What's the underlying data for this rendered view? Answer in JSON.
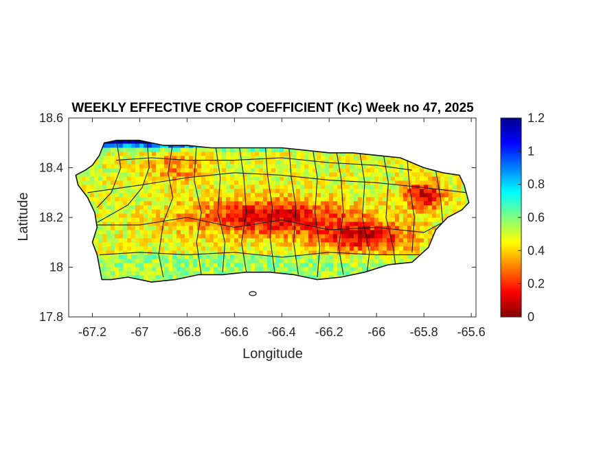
{
  "title": "WEEKLY EFFECTIVE CROP COEFFICIENT (Kc) Week no 47, 2025",
  "x_axis": {
    "label": "Longitude",
    "range": [
      -67.3,
      -65.58
    ],
    "ticks": [
      {
        "value": -67.2,
        "label": "-67.2"
      },
      {
        "value": -67.0,
        "label": "-67"
      },
      {
        "value": -66.8,
        "label": "-66.8"
      },
      {
        "value": -66.6,
        "label": "-66.6"
      },
      {
        "value": -66.4,
        "label": "-66.4"
      },
      {
        "value": -66.2,
        "label": "-66.2"
      },
      {
        "value": -66.0,
        "label": "-66"
      },
      {
        "value": -65.8,
        "label": "-65.8"
      },
      {
        "value": -65.6,
        "label": "-65.6"
      }
    ]
  },
  "y_axis": {
    "label": "Latitude",
    "range": [
      17.8,
      18.6
    ],
    "ticks": [
      {
        "value": 17.8,
        "label": "17.8"
      },
      {
        "value": 18.0,
        "label": "18"
      },
      {
        "value": 18.2,
        "label": "18.2"
      },
      {
        "value": 18.4,
        "label": "18.4"
      },
      {
        "value": 18.6,
        "label": "18.6"
      }
    ]
  },
  "colorbar": {
    "colormap": "jet",
    "range": [
      0,
      1.2
    ],
    "ticks": [
      {
        "value": 0,
        "label": "0"
      },
      {
        "value": 0.2,
        "label": "0.2"
      },
      {
        "value": 0.4,
        "label": "0.4"
      },
      {
        "value": 0.6,
        "label": "0.6"
      },
      {
        "value": 0.8,
        "label": "0.8"
      },
      {
        "value": 1.0,
        "label": "1"
      },
      {
        "value": 1.2,
        "label": "1.2"
      }
    ]
  },
  "map": {
    "region_outline_lonlat": [
      [
        -67.27,
        18.37
      ],
      [
        -67.23,
        18.39
      ],
      [
        -67.2,
        18.41
      ],
      [
        -67.17,
        18.45
      ],
      [
        -67.15,
        18.5
      ],
      [
        -67.1,
        18.51
      ],
      [
        -67.0,
        18.51
      ],
      [
        -66.9,
        18.49
      ],
      [
        -66.8,
        18.49
      ],
      [
        -66.7,
        18.48
      ],
      [
        -66.6,
        18.48
      ],
      [
        -66.5,
        18.48
      ],
      [
        -66.4,
        18.48
      ],
      [
        -66.3,
        18.47
      ],
      [
        -66.2,
        18.46
      ],
      [
        -66.1,
        18.46
      ],
      [
        -66.0,
        18.45
      ],
      [
        -65.9,
        18.44
      ],
      [
        -65.8,
        18.4
      ],
      [
        -65.72,
        18.38
      ],
      [
        -65.65,
        18.37
      ],
      [
        -65.63,
        18.33
      ],
      [
        -65.61,
        18.26
      ],
      [
        -65.64,
        18.23
      ],
      [
        -65.7,
        18.2
      ],
      [
        -65.75,
        18.15
      ],
      [
        -65.78,
        18.08
      ],
      [
        -65.85,
        18.02
      ],
      [
        -65.95,
        18.01
      ],
      [
        -66.05,
        17.98
      ],
      [
        -66.15,
        17.96
      ],
      [
        -66.25,
        17.95
      ],
      [
        -66.35,
        17.97
      ],
      [
        -66.45,
        17.98
      ],
      [
        -66.55,
        17.98
      ],
      [
        -66.65,
        17.97
      ],
      [
        -66.75,
        17.97
      ],
      [
        -66.85,
        17.95
      ],
      [
        -66.95,
        17.94
      ],
      [
        -67.05,
        17.96
      ],
      [
        -67.12,
        17.95
      ],
      [
        -67.16,
        17.95
      ],
      [
        -67.17,
        18.0
      ],
      [
        -67.18,
        18.05
      ],
      [
        -67.2,
        18.1
      ],
      [
        -67.18,
        18.16
      ],
      [
        -67.19,
        18.22
      ],
      [
        -67.22,
        18.28
      ],
      [
        -67.26,
        18.33
      ]
    ]
  }
}
